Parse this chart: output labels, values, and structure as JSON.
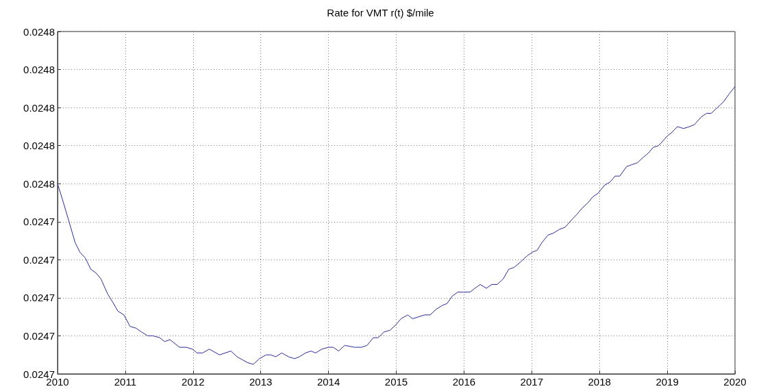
{
  "chart_data": {
    "type": "line",
    "title": "Rate for VMT r(t) $/mile",
    "x": [
      2010.0,
      2010.07,
      2010.17,
      2010.26,
      2010.33,
      2010.41,
      2010.49,
      2010.57,
      2010.64,
      2010.74,
      2010.81,
      2010.89,
      2010.98,
      2011.07,
      2011.16,
      2011.24,
      2011.33,
      2011.41,
      2011.51,
      2011.58,
      2011.66,
      2011.8,
      2011.9,
      2011.99,
      2012.06,
      2012.14,
      2012.24,
      2012.39,
      2012.56,
      2012.65,
      2012.8,
      2012.89,
      2012.98,
      2013.08,
      2013.15,
      2013.22,
      2013.31,
      2013.41,
      2013.5,
      2013.57,
      2013.66,
      2013.74,
      2013.81,
      2013.9,
      2014.0,
      2014.07,
      2014.15,
      2014.24,
      2014.38,
      2014.49,
      2014.57,
      2014.66,
      2014.73,
      2014.82,
      2014.91,
      2015.0,
      2015.07,
      2015.17,
      2015.24,
      2015.33,
      2015.42,
      2015.5,
      2015.59,
      2015.68,
      2015.75,
      2015.83,
      2015.91,
      2015.99,
      2016.09,
      2016.16,
      2016.24,
      2016.33,
      2016.41,
      2016.49,
      2016.58,
      2016.66,
      2016.74,
      2016.84,
      2016.93,
      2017.01,
      2017.08,
      2017.15,
      2017.24,
      2017.32,
      2017.41,
      2017.49,
      2017.59,
      2017.67,
      2017.74,
      2017.83,
      2017.9,
      2017.98,
      2018.07,
      2018.16,
      2018.23,
      2018.3,
      2018.4,
      2018.48,
      2018.56,
      2018.65,
      2018.72,
      2018.79,
      2018.87,
      2018.9,
      2019.0,
      2019.07,
      2019.15,
      2019.24,
      2019.33,
      2019.4,
      2019.5,
      2019.58,
      2019.65,
      2019.74,
      2019.83,
      2019.91,
      2020.0
    ],
    "series": [
      {
        "color": "#2a2a9a",
        "values": [
          0.02476,
          0.024752,
          0.02474,
          0.024729,
          0.024724,
          0.024721,
          0.024715,
          0.024713,
          0.02471,
          0.024702,
          0.024698,
          0.024693,
          0.024691,
          0.024685,
          0.024684,
          0.024682,
          0.02468,
          0.02468,
          0.024679,
          0.024677,
          0.024678,
          0.024674,
          0.024674,
          0.024673,
          0.024671,
          0.024671,
          0.024673,
          0.02467,
          0.024672,
          0.024669,
          0.024666,
          0.024665,
          0.024668,
          0.02467,
          0.02467,
          0.024669,
          0.024671,
          0.024669,
          0.024668,
          0.024669,
          0.024671,
          0.024672,
          0.024671,
          0.024673,
          0.024674,
          0.024674,
          0.024672,
          0.024675,
          0.024674,
          0.024674,
          0.024675,
          0.024679,
          0.024679,
          0.024682,
          0.024683,
          0.024686,
          0.024689,
          0.024691,
          0.024689,
          0.02469,
          0.024691,
          0.024691,
          0.024694,
          0.024696,
          0.024697,
          0.024701,
          0.024703,
          0.024703,
          0.024703,
          0.024705,
          0.024707,
          0.024705,
          0.024707,
          0.024707,
          0.02471,
          0.024715,
          0.024716,
          0.024719,
          0.024722,
          0.024724,
          0.024725,
          0.024729,
          0.024733,
          0.024734,
          0.024736,
          0.024737,
          0.024741,
          0.024744,
          0.024747,
          0.02475,
          0.024753,
          0.024755,
          0.024759,
          0.024761,
          0.024764,
          0.024764,
          0.024769,
          0.02477,
          0.024771,
          0.024774,
          0.024776,
          0.024779,
          0.02478,
          0.024781,
          0.024785,
          0.024787,
          0.02479,
          0.024789,
          0.02479,
          0.024791,
          0.024795,
          0.024797,
          0.024797,
          0.0248,
          0.024803,
          0.024807,
          0.024811
        ]
      }
    ],
    "xlim": [
      2010,
      2020
    ],
    "xticks": [
      2010,
      2011,
      2012,
      2013,
      2014,
      2015,
      2016,
      2017,
      2018,
      2019,
      2020
    ],
    "ylim": [
      0.02466,
      0.02484
    ],
    "yticks": [
      {
        "value": 0.02466,
        "label": "0.0247"
      },
      {
        "value": 0.02468,
        "label": "0.0247"
      },
      {
        "value": 0.0247,
        "label": "0.0247"
      },
      {
        "value": 0.02472,
        "label": "0.0247"
      },
      {
        "value": 0.02474,
        "label": "0.0247"
      },
      {
        "value": 0.02476,
        "label": "0.0248"
      },
      {
        "value": 0.02478,
        "label": "0.0248"
      },
      {
        "value": 0.0248,
        "label": "0.0248"
      },
      {
        "value": 0.02482,
        "label": "0.0248"
      },
      {
        "value": 0.02484,
        "label": "0.0248"
      }
    ],
    "grid": true,
    "marker": "none",
    "line_style": "solid"
  }
}
